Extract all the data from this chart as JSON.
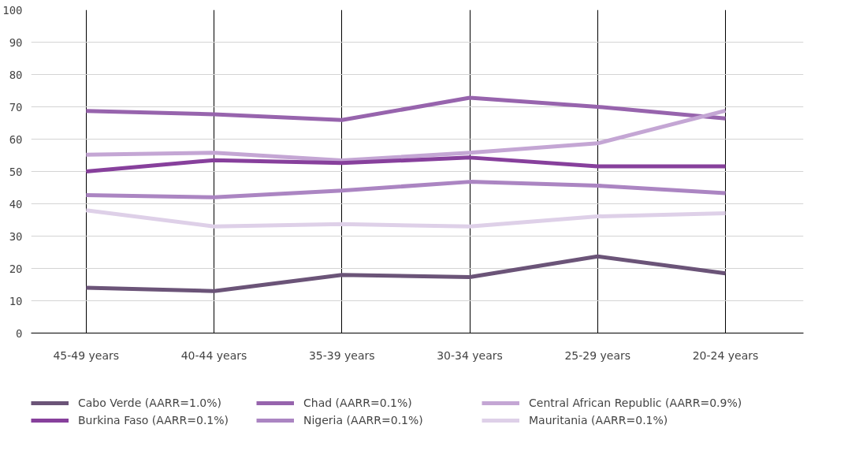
{
  "chart_data": {
    "type": "line",
    "categories": [
      "45-49 years",
      "40-44 years",
      "35-39 years",
      "30-34 years",
      "25-29 years",
      "20-24 years"
    ],
    "series": [
      {
        "name": "Cabo Verde (AARR=1.0%)",
        "color": "#6b5478",
        "values": [
          14,
          13,
          18,
          17.3,
          23.7,
          18.5
        ]
      },
      {
        "name": "Chad (AARR=0.1%)",
        "color": "#9764ad",
        "values": [
          68.7,
          67.7,
          65.9,
          72.8,
          70,
          66.4
        ]
      },
      {
        "name": "Central African Republic (AARR=0.9%)",
        "color": "#c4a6d4",
        "values": [
          55.2,
          55.8,
          53.4,
          55.8,
          58.7,
          68.8
        ]
      },
      {
        "name": "Burkina Faso (AARR=0.1%)",
        "color": "#87409c",
        "values": [
          50,
          53.5,
          52.6,
          54.3,
          51.6,
          51.6
        ]
      },
      {
        "name": "Nigeria (AARR=0.1%)",
        "color": "#ab85c2",
        "values": [
          42.7,
          42,
          44.1,
          46.8,
          45.6,
          43.3
        ]
      },
      {
        "name": "Mauritania (AARR=0.1%)",
        "color": "#ded0e8",
        "values": [
          38,
          33,
          33.7,
          33,
          36.1,
          37.1
        ]
      }
    ],
    "ylim": [
      0,
      100
    ],
    "yticks": [
      0,
      10,
      20,
      30,
      40,
      50,
      60,
      70,
      80,
      90,
      100
    ],
    "grid": true,
    "legend": "bottom",
    "marker": "none",
    "line_style": "solid"
  }
}
